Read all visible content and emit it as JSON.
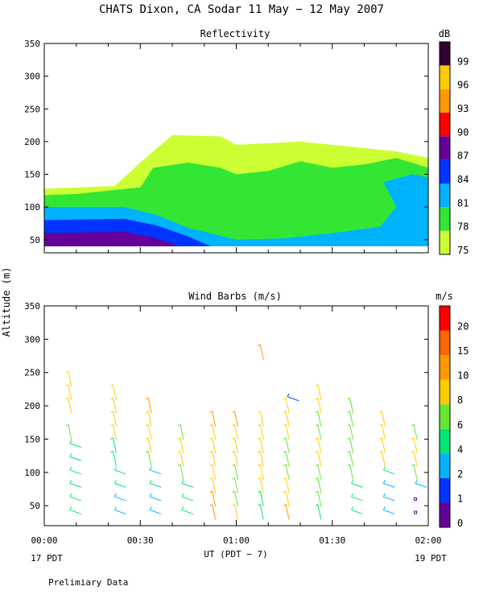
{
  "title": "CHATS Dixon, CA  Sodar  11 May − 12 May 2007",
  "y_axis_label": "Altitude (m)",
  "x_axis_label": "UT  (PDT − 7)",
  "x_left_date": "17 PDT",
  "x_right_date": "19 PDT",
  "footer_note": "Prelimiary Data",
  "colors": {
    "refl_scale": [
      "#ccff33",
      "#33e633",
      "#00b3ff",
      "#0033ff",
      "#660099",
      "#ff0000",
      "#ff9900",
      "#ffcc00",
      "#330033"
    ],
    "wind_scale": [
      "#660099",
      "#0033ff",
      "#00b3ff",
      "#00e673",
      "#66e633",
      "#ffcc00",
      "#ff9900",
      "#ff6600",
      "#ff0000"
    ]
  },
  "chart_data": [
    {
      "type": "heatmap",
      "title": "Reflectivity",
      "ylabel": "Altitude (m)",
      "xlabel": "UT  (PDT − 7)",
      "x_ticks": [
        "00:00",
        "00:30",
        "01:00",
        "01:30",
        "02:00"
      ],
      "y_ticks": [
        50,
        100,
        150,
        200,
        250,
        300,
        350
      ],
      "xlim": [
        "00:00",
        "02:00"
      ],
      "ylim": [
        30,
        350
      ],
      "legend_unit": "dB",
      "legend_placement": "right",
      "legend_levels": [
        75,
        78,
        81,
        84,
        87,
        90,
        93,
        96,
        99
      ],
      "grid": false,
      "contours": [
        {
          "level_db": 75,
          "points": [
            [
              "00:00",
              40
            ],
            [
              "00:00",
              128
            ],
            [
              "00:22",
              132
            ],
            [
              "00:30",
              168
            ],
            [
              "00:40",
              210
            ],
            [
              "00:55",
              208
            ],
            [
              "01:00",
              195
            ],
            [
              "01:20",
              200
            ],
            [
              "01:30",
              195
            ],
            [
              "01:40",
              190
            ],
            [
              "01:50",
              185
            ],
            [
              "02:00",
              175
            ],
            [
              "02:00",
              40
            ]
          ]
        },
        {
          "level_db": 78,
          "points": [
            [
              "00:00",
              40
            ],
            [
              "00:00",
              118
            ],
            [
              "00:10",
              120
            ],
            [
              "00:20",
              125
            ],
            [
              "00:30",
              130
            ],
            [
              "00:34",
              160
            ],
            [
              "00:45",
              168
            ],
            [
              "00:55",
              160
            ],
            [
              "01:00",
              150
            ],
            [
              "01:10",
              155
            ],
            [
              "01:20",
              170
            ],
            [
              "01:30",
              160
            ],
            [
              "01:40",
              165
            ],
            [
              "01:50",
              175
            ],
            [
              "02:00",
              160
            ],
            [
              "02:00",
              40
            ]
          ]
        },
        {
          "level_db": 81,
          "points": [
            [
              "00:00",
              40
            ],
            [
              "00:00",
              100
            ],
            [
              "00:25",
              100
            ],
            [
              "00:35",
              88
            ],
            [
              "00:45",
              68
            ],
            [
              "01:00",
              50
            ],
            [
              "01:15",
              52
            ],
            [
              "01:30",
              60
            ],
            [
              "01:45",
              70
            ],
            [
              "01:50",
              100
            ],
            [
              "01:46",
              138
            ],
            [
              "01:55",
              150
            ],
            [
              "02:00",
              145
            ],
            [
              "02:00",
              40
            ]
          ]
        },
        {
          "level_db": 84,
          "points": [
            [
              "00:00",
              40
            ],
            [
              "00:00",
              80
            ],
            [
              "00:25",
              82
            ],
            [
              "00:35",
              72
            ],
            [
              "00:45",
              55
            ],
            [
              "00:52",
              40
            ]
          ]
        },
        {
          "level_db": 87,
          "points": [
            [
              "00:00",
              40
            ],
            [
              "00:00",
              60
            ],
            [
              "00:25",
              62
            ],
            [
              "00:35",
              52
            ],
            [
              "00:42",
              40
            ]
          ]
        }
      ]
    },
    {
      "type": "scatter",
      "title": "Wind Barbs (m/s)",
      "ylabel": "Altitude (m)",
      "xlabel": "UT  (PDT − 7)",
      "x_ticks": [
        "00:00",
        "00:30",
        "01:00",
        "01:30",
        "02:00"
      ],
      "y_ticks": [
        50,
        100,
        150,
        200,
        250,
        300,
        350
      ],
      "xlim": [
        "00:00",
        "02:00"
      ],
      "ylim": [
        20,
        350
      ],
      "legend_unit": "m/s",
      "legend_placement": "right",
      "legend_levels": [
        0,
        1,
        2,
        4,
        6,
        8,
        10,
        15,
        20
      ],
      "grid": false,
      "profile_times": [
        "00:08",
        "00:22",
        "00:33",
        "00:43",
        "00:53",
        "01:00",
        "01:08",
        "01:16",
        "01:26",
        "01:36",
        "01:46",
        "01:56"
      ],
      "profile_heights_m": [
        40,
        60,
        80,
        100,
        120,
        140,
        160,
        180,
        200,
        220,
        240
      ],
      "wind_speed_m_s": [
        [
          4,
          4,
          4,
          4,
          4,
          4,
          7,
          null,
          8,
          8,
          8
        ],
        [
          2,
          2,
          4,
          4,
          5,
          5,
          8,
          8,
          8,
          8,
          null
        ],
        [
          2,
          2,
          4,
          2,
          6,
          8,
          8,
          8,
          10,
          null,
          null
        ],
        [
          4,
          4,
          4,
          6,
          8,
          8,
          7,
          null,
          null,
          null,
          null
        ],
        [
          10,
          10,
          8,
          8,
          8,
          8,
          8,
          10,
          null,
          null,
          null
        ],
        [
          8,
          6,
          6,
          6,
          8,
          8,
          8,
          10,
          null,
          null,
          null
        ],
        [
          5,
          5,
          8,
          8,
          8,
          8,
          8,
          8,
          null,
          null,
          null
        ],
        [
          10,
          8,
          8,
          6,
          6,
          6,
          8,
          8,
          8,
          null,
          null
        ],
        [
          5,
          6,
          6,
          7,
          8,
          8,
          6,
          6,
          8,
          8,
          null
        ],
        [
          4,
          4,
          4,
          6,
          7,
          7,
          6,
          6,
          6,
          null,
          null
        ],
        [
          2,
          2,
          2,
          4,
          8,
          8,
          8,
          8,
          null,
          null,
          null
        ],
        [
          0,
          0,
          2,
          6,
          8,
          8,
          6,
          null,
          null,
          null,
          null
        ]
      ],
      "extra_barbs": [
        {
          "time": "01:08",
          "height_m": 280,
          "speed_m_s": 10
        },
        {
          "time": "01:16",
          "height_m": 210,
          "speed_m_s": 1
        }
      ]
    }
  ]
}
